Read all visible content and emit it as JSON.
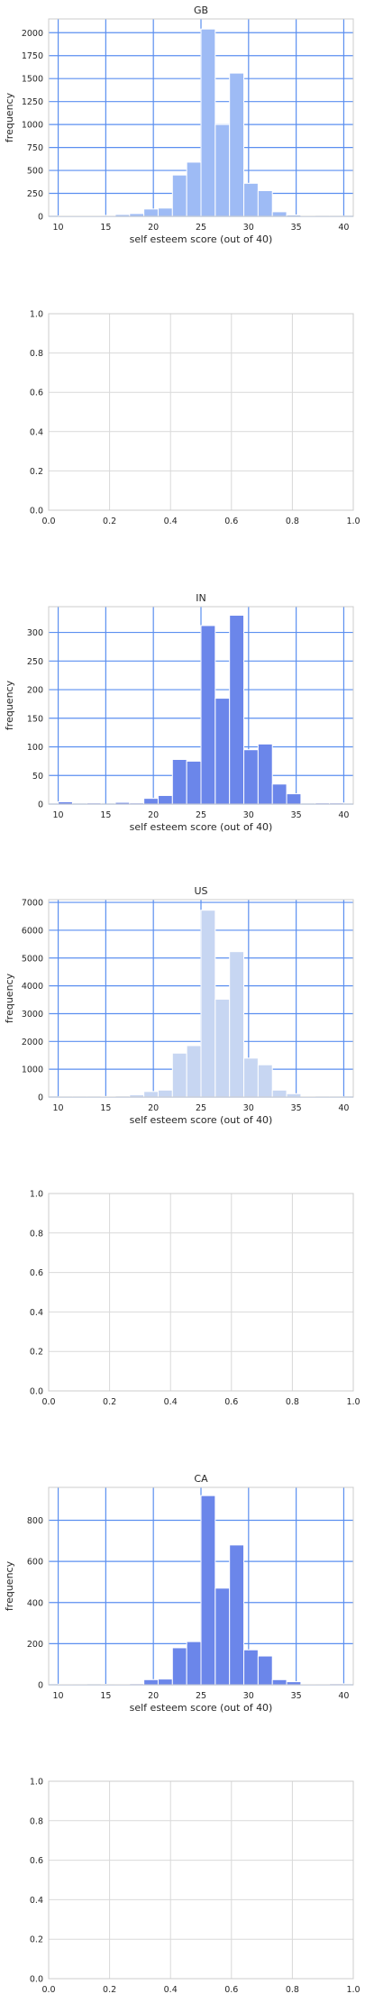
{
  "colors": {
    "grid_blue": "#5b8ff0",
    "grid_gray": "#d9d9d9",
    "frame": "#cccccc"
  },
  "chart_data": [
    {
      "type": "bar",
      "title": "GB",
      "xlabel": "self esteem score (out of 40)",
      "ylabel": "frequency",
      "xlim": [
        9,
        41
      ],
      "ylim": [
        0,
        2150
      ],
      "xticks": [
        10,
        15,
        20,
        25,
        30,
        35,
        40
      ],
      "yticks": [
        0,
        250,
        500,
        750,
        1000,
        1250,
        1500,
        1750,
        2000
      ],
      "grid": "blue",
      "bar_color": "#9ebbf5",
      "bin_edges": [
        10,
        11.5,
        13,
        14.5,
        16,
        17.5,
        19,
        20.5,
        22,
        23.5,
        25,
        26.5,
        28,
        29.5,
        31,
        32.5,
        34,
        35.5,
        37,
        38.5,
        40
      ],
      "values": [
        5,
        5,
        5,
        10,
        20,
        30,
        80,
        90,
        450,
        590,
        2040,
        1000,
        1560,
        360,
        280,
        50,
        15,
        5,
        3,
        3
      ]
    },
    {
      "type": "empty",
      "title": "",
      "xlim": [
        0,
        1
      ],
      "ylim": [
        0,
        1
      ],
      "xticks": [
        "0.0",
        "0.2",
        "0.4",
        "0.6",
        "0.8",
        "1.0"
      ],
      "yticks": [
        "0.0",
        "0.2",
        "0.4",
        "0.6",
        "0.8",
        "1.0"
      ],
      "grid": "gray"
    },
    {
      "type": "bar",
      "title": "IN",
      "xlabel": "self esteem score (out of 40)",
      "ylabel": "frequency",
      "xlim": [
        9,
        41
      ],
      "ylim": [
        0,
        345
      ],
      "xticks": [
        10,
        15,
        20,
        25,
        30,
        35,
        40
      ],
      "yticks": [
        0,
        50,
        100,
        150,
        200,
        250,
        300
      ],
      "grid": "blue",
      "bar_color": "#6b86ea",
      "bin_edges": [
        10,
        11.5,
        13,
        14.5,
        16,
        17.5,
        19,
        20.5,
        22,
        23.5,
        25,
        26.5,
        28,
        29.5,
        31,
        32.5,
        34,
        35.5,
        37,
        38.5,
        40
      ],
      "values": [
        4,
        0,
        2,
        0,
        3,
        2,
        10,
        15,
        78,
        75,
        312,
        185,
        330,
        95,
        105,
        35,
        18,
        0,
        2,
        2
      ]
    },
    {
      "type": "bar",
      "title": "US",
      "xlabel": "self esteem score (out of 40)",
      "ylabel": "frequency",
      "xlim": [
        9,
        41
      ],
      "ylim": [
        0,
        7100
      ],
      "xticks": [
        10,
        15,
        20,
        25,
        30,
        35,
        40
      ],
      "yticks": [
        0,
        1000,
        2000,
        3000,
        4000,
        5000,
        6000,
        7000
      ],
      "grid": "blue",
      "bar_color": "#c7d6f2",
      "bin_edges": [
        10,
        11.5,
        13,
        14.5,
        16,
        17.5,
        19,
        20.5,
        22,
        23.5,
        25,
        26.5,
        28,
        29.5,
        31,
        32.5,
        34,
        35.5,
        37,
        38.5,
        40
      ],
      "values": [
        10,
        10,
        10,
        20,
        40,
        80,
        200,
        250,
        1580,
        1850,
        6720,
        3520,
        5230,
        1400,
        1160,
        250,
        120,
        20,
        10,
        10
      ]
    },
    {
      "type": "empty",
      "title": "",
      "xlim": [
        0,
        1
      ],
      "ylim": [
        0,
        1
      ],
      "xticks": [
        "0.0",
        "0.2",
        "0.4",
        "0.6",
        "0.8",
        "1.0"
      ],
      "yticks": [
        "0.0",
        "0.2",
        "0.4",
        "0.6",
        "0.8",
        "1.0"
      ],
      "grid": "gray"
    },
    {
      "type": "bar",
      "title": "CA",
      "xlabel": "self esteem score (out of 40)",
      "ylabel": "frequency",
      "xlim": [
        9,
        41
      ],
      "ylim": [
        0,
        960
      ],
      "xticks": [
        10,
        15,
        20,
        25,
        30,
        35,
        40
      ],
      "yticks": [
        0,
        200,
        400,
        600,
        800
      ],
      "grid": "blue",
      "bar_color": "#6b86ea",
      "bin_edges": [
        10,
        11.5,
        13,
        14.5,
        16,
        17.5,
        19,
        20.5,
        22,
        23.5,
        25,
        26.5,
        28,
        29.5,
        31,
        32.5,
        34,
        35.5,
        37,
        38.5,
        40
      ],
      "values": [
        3,
        2,
        1,
        2,
        3,
        5,
        25,
        28,
        180,
        210,
        920,
        470,
        680,
        170,
        140,
        25,
        15,
        3,
        2,
        5
      ]
    },
    {
      "type": "empty",
      "title": "",
      "xlim": [
        0,
        1
      ],
      "ylim": [
        0,
        1
      ],
      "xticks": [
        "0.0",
        "0.2",
        "0.4",
        "0.6",
        "0.8",
        "1.0"
      ],
      "yticks": [
        "0.0",
        "0.2",
        "0.4",
        "0.6",
        "0.8",
        "1.0"
      ],
      "grid": "gray"
    }
  ]
}
